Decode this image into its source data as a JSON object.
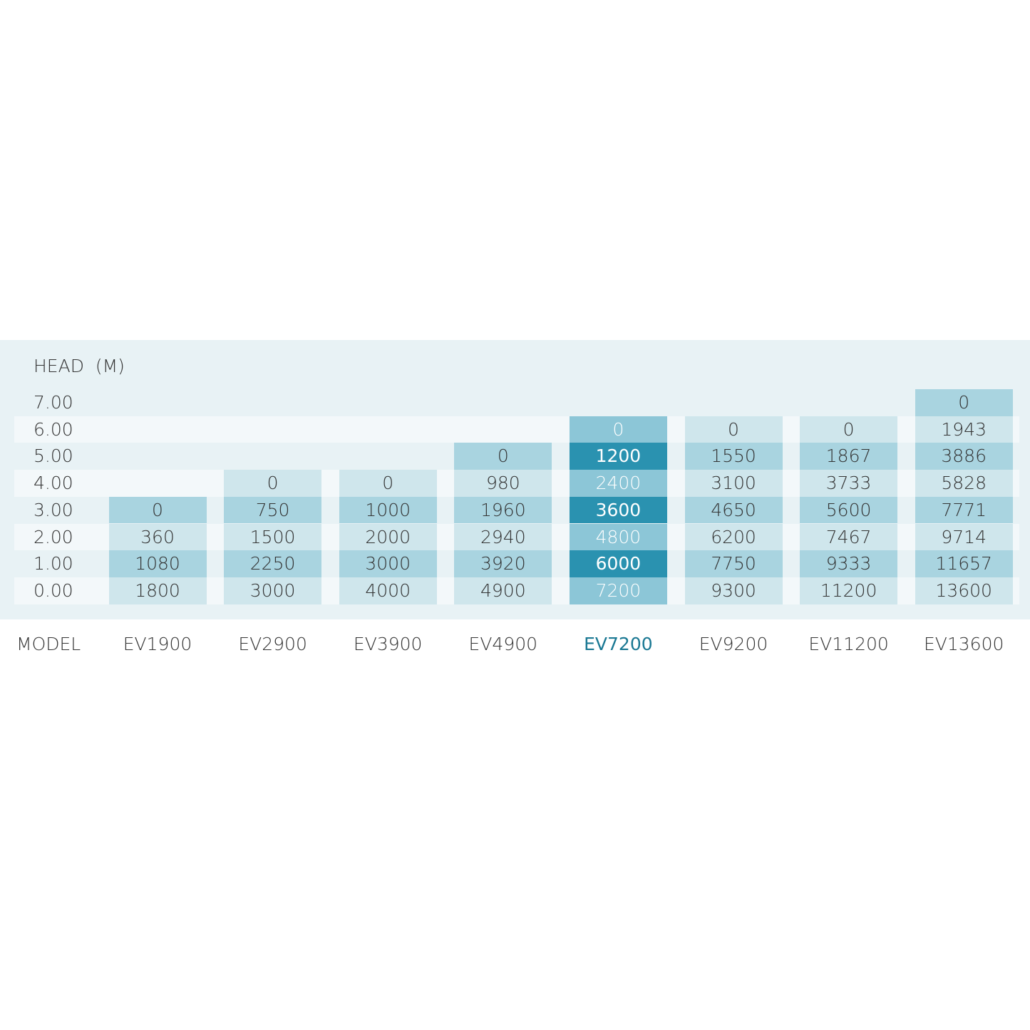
{
  "table": {
    "header": "HEAD  (M)",
    "heads": [
      "7.00",
      "6.00",
      "5.00",
      "4.00",
      "3.00",
      "2.00",
      "1.00",
      "0.00"
    ],
    "model_label": "MODEL",
    "models": [
      "EV1900",
      "EV2900",
      "EV3900",
      "EV4900",
      "EV7200",
      "EV9200",
      "EV11200",
      "EV13600"
    ],
    "highlight_column": 4,
    "rows": [
      [
        null,
        null,
        null,
        null,
        null,
        null,
        null,
        0
      ],
      [
        null,
        null,
        null,
        null,
        0,
        0,
        0,
        1943
      ],
      [
        null,
        null,
        null,
        0,
        1200,
        1550,
        1867,
        3886
      ],
      [
        null,
        0,
        0,
        980,
        2400,
        3100,
        3733,
        5828
      ],
      [
        0,
        750,
        1000,
        1960,
        3600,
        4650,
        5600,
        7771
      ],
      [
        360,
        1500,
        2000,
        2940,
        4800,
        6200,
        7467,
        9714
      ],
      [
        1080,
        2250,
        3000,
        3920,
        6000,
        7750,
        9333,
        11657
      ],
      [
        1800,
        3000,
        4000,
        4900,
        7200,
        9300,
        11200,
        13600
      ]
    ]
  }
}
